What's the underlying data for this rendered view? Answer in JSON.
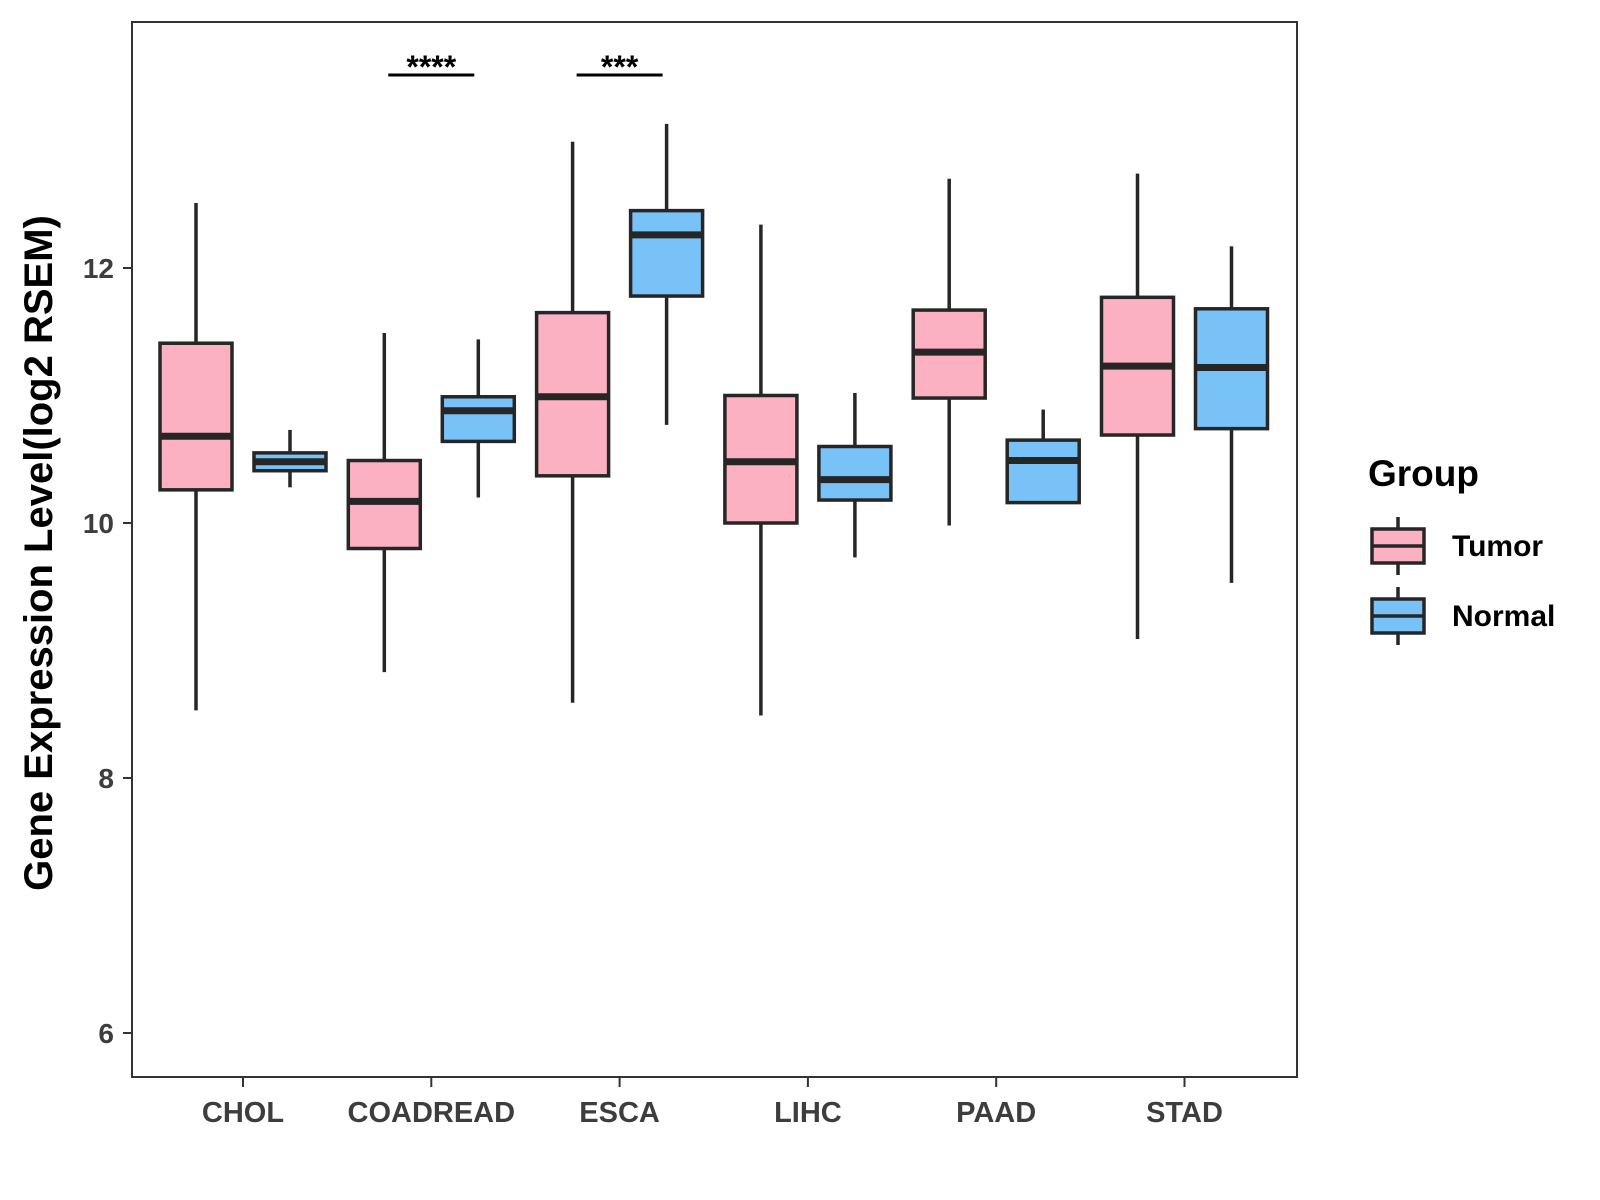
{
  "chart_data": {
    "type": "boxplot",
    "title": "",
    "xlabel": "",
    "ylabel": "Gene Expression Level(log2 RSEM)",
    "ylim": [
      5.6,
      13.9
    ],
    "yticks": [
      6,
      8,
      10,
      12
    ],
    "grid": false,
    "legend": {
      "title": "Group",
      "placement": "right",
      "entries": [
        "Tumor",
        "Normal"
      ]
    },
    "colors": {
      "Tumor": "#fbb1c2",
      "Normal": "#78c2f8",
      "outline": "#262626"
    },
    "categories": [
      "CHOL",
      "COADREAD",
      "ESCA",
      "LIHC",
      "PAAD",
      "STAD"
    ],
    "series": [
      {
        "name": "Tumor",
        "boxes": [
          {
            "category": "CHOL",
            "min": 8.53,
            "q1": 10.26,
            "median": 10.68,
            "q3": 11.41,
            "max": 12.51
          },
          {
            "category": "COADREAD",
            "min": 8.83,
            "q1": 9.8,
            "median": 10.17,
            "q3": 10.49,
            "max": 11.49
          },
          {
            "category": "ESCA",
            "min": 8.59,
            "q1": 10.37,
            "median": 10.99,
            "q3": 11.65,
            "max": 12.99
          },
          {
            "category": "LIHC",
            "min": 8.49,
            "q1": 10.0,
            "median": 10.48,
            "q3": 11.0,
            "max": 12.34
          },
          {
            "category": "PAAD",
            "min": 9.98,
            "q1": 10.98,
            "median": 11.34,
            "q3": 11.67,
            "max": 12.7
          },
          {
            "category": "STAD",
            "min": 9.09,
            "q1": 10.69,
            "median": 11.23,
            "q3": 11.77,
            "max": 12.74
          }
        ]
      },
      {
        "name": "Normal",
        "boxes": [
          {
            "category": "CHOL",
            "min": 10.28,
            "q1": 10.41,
            "median": 10.48,
            "q3": 10.55,
            "max": 10.73
          },
          {
            "category": "COADREAD",
            "min": 10.2,
            "q1": 10.64,
            "median": 10.88,
            "q3": 10.99,
            "max": 11.44
          },
          {
            "category": "ESCA",
            "min": 10.77,
            "q1": 11.78,
            "median": 12.26,
            "q3": 12.45,
            "max": 13.13
          },
          {
            "category": "LIHC",
            "min": 9.73,
            "q1": 10.18,
            "median": 10.34,
            "q3": 10.6,
            "max": 11.02
          },
          {
            "category": "PAAD",
            "min": 10.16,
            "q1": 10.16,
            "median": 10.49,
            "q3": 10.65,
            "max": 10.89
          },
          {
            "category": "STAD",
            "min": 9.53,
            "q1": 10.74,
            "median": 11.22,
            "q3": 11.68,
            "max": 12.17
          }
        ]
      }
    ],
    "annotations": [
      {
        "category": "COADREAD",
        "label": "****"
      },
      {
        "category": "ESCA",
        "label": "***"
      }
    ]
  }
}
